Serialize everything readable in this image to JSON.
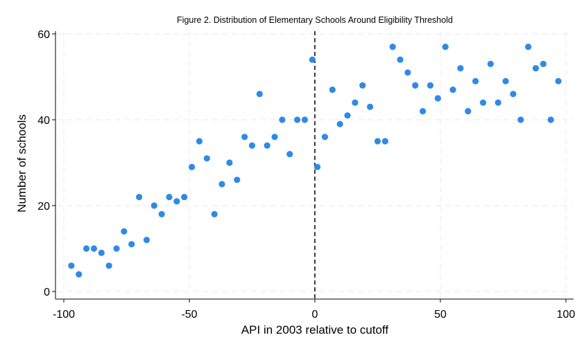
{
  "chart_data": {
    "type": "scatter",
    "title": "Figure 2. Distribution of Elementary Schools Around Eligibility Threshold",
    "xlabel": "API in 2003 relative to cutoff",
    "ylabel": "Number of schools",
    "xlim": [
      -100,
      100
    ],
    "ylim": [
      0,
      60
    ],
    "xticks": [
      -100,
      -50,
      0,
      50,
      100
    ],
    "yticks": [
      0,
      20,
      40,
      60
    ],
    "grid": true,
    "cutoff_line": 0,
    "marker_color": "#2f8ae6",
    "points": [
      {
        "x": -97,
        "y": 6
      },
      {
        "x": -94,
        "y": 4
      },
      {
        "x": -91,
        "y": 10
      },
      {
        "x": -88,
        "y": 10
      },
      {
        "x": -85,
        "y": 9
      },
      {
        "x": -82,
        "y": 6
      },
      {
        "x": -79,
        "y": 10
      },
      {
        "x": -76,
        "y": 14
      },
      {
        "x": -73,
        "y": 11
      },
      {
        "x": -70,
        "y": 22
      },
      {
        "x": -67,
        "y": 12
      },
      {
        "x": -64,
        "y": 20
      },
      {
        "x": -61,
        "y": 18
      },
      {
        "x": -58,
        "y": 22
      },
      {
        "x": -55,
        "y": 21
      },
      {
        "x": -52,
        "y": 22
      },
      {
        "x": -49,
        "y": 29
      },
      {
        "x": -46,
        "y": 35
      },
      {
        "x": -43,
        "y": 31
      },
      {
        "x": -40,
        "y": 18
      },
      {
        "x": -37,
        "y": 25
      },
      {
        "x": -34,
        "y": 30
      },
      {
        "x": -31,
        "y": 26
      },
      {
        "x": -28,
        "y": 36
      },
      {
        "x": -25,
        "y": 34
      },
      {
        "x": -22,
        "y": 46
      },
      {
        "x": -19,
        "y": 34
      },
      {
        "x": -16,
        "y": 36
      },
      {
        "x": -13,
        "y": 40
      },
      {
        "x": -10,
        "y": 32
      },
      {
        "x": -7,
        "y": 40
      },
      {
        "x": -4,
        "y": 40
      },
      {
        "x": -1,
        "y": 54
      },
      {
        "x": 1,
        "y": 29
      },
      {
        "x": 4,
        "y": 36
      },
      {
        "x": 7,
        "y": 47
      },
      {
        "x": 10,
        "y": 39
      },
      {
        "x": 13,
        "y": 41
      },
      {
        "x": 16,
        "y": 44
      },
      {
        "x": 19,
        "y": 48
      },
      {
        "x": 22,
        "y": 43
      },
      {
        "x": 25,
        "y": 35
      },
      {
        "x": 28,
        "y": 35
      },
      {
        "x": 31,
        "y": 57
      },
      {
        "x": 34,
        "y": 54
      },
      {
        "x": 37,
        "y": 51
      },
      {
        "x": 40,
        "y": 48
      },
      {
        "x": 43,
        "y": 42
      },
      {
        "x": 46,
        "y": 48
      },
      {
        "x": 49,
        "y": 45
      },
      {
        "x": 52,
        "y": 57
      },
      {
        "x": 55,
        "y": 47
      },
      {
        "x": 58,
        "y": 52
      },
      {
        "x": 61,
        "y": 42
      },
      {
        "x": 64,
        "y": 49
      },
      {
        "x": 67,
        "y": 44
      },
      {
        "x": 70,
        "y": 53
      },
      {
        "x": 73,
        "y": 44
      },
      {
        "x": 76,
        "y": 49
      },
      {
        "x": 79,
        "y": 46
      },
      {
        "x": 82,
        "y": 40
      },
      {
        "x": 85,
        "y": 57
      },
      {
        "x": 88,
        "y": 52
      },
      {
        "x": 91,
        "y": 53
      },
      {
        "x": 94,
        "y": 40
      },
      {
        "x": 97,
        "y": 49
      }
    ]
  }
}
